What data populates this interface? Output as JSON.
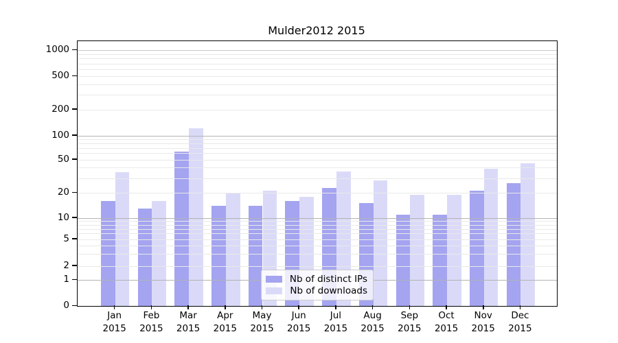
{
  "title": "Mulder2012 2015",
  "chart_data": {
    "type": "bar",
    "title": "Mulder2012 2015",
    "months": [
      "Jan",
      "Feb",
      "Mar",
      "Apr",
      "May",
      "Jun",
      "Jul",
      "Aug",
      "Sep",
      "Oct",
      "Nov",
      "Dec"
    ],
    "year_label": "2015",
    "categories": [
      "Jan 2015",
      "Feb 2015",
      "Mar 2015",
      "Apr 2015",
      "May 2015",
      "Jun 2015",
      "Jul 2015",
      "Aug 2015",
      "Sep 2015",
      "Oct 2015",
      "Nov 2015",
      "Dec 2015"
    ],
    "series": [
      {
        "name": "Nb of distinct IPs",
        "color": "#a4a4f0",
        "values": [
          16,
          13,
          63,
          14,
          14,
          16,
          23,
          15,
          11,
          11,
          21,
          26
        ]
      },
      {
        "name": "Nb of downloads",
        "color": "#dadaf8",
        "values": [
          35,
          16,
          122,
          20,
          21,
          18,
          36,
          28,
          19,
          19,
          39,
          45
        ]
      }
    ],
    "yscale": "symlog",
    "y_ticks": [
      0,
      1,
      2,
      5,
      10,
      20,
      50,
      100,
      200,
      500,
      1000
    ],
    "y_tick_labels": [
      "0",
      "1",
      "2",
      "5",
      "10",
      "20",
      "50",
      "100",
      "200",
      "500",
      "1000"
    ],
    "ylim": [
      0,
      1300
    ],
    "xlabel": "",
    "ylabel": "",
    "grid": true,
    "legend_position": "lower-center",
    "colors": {
      "major_gridline": "#b3b3b3",
      "minor_gridline": "#e9e9e9",
      "thousand_gridline": "#c9c9c9",
      "axis": "#000000"
    }
  }
}
